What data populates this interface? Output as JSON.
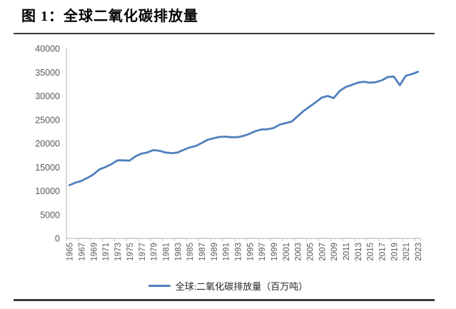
{
  "title": "图 1：全球二氧化碳排放量",
  "colors": {
    "line": "#4f81bd",
    "axis": "#bfbfbf",
    "tick_label": "#595959",
    "rule": "#3b3b3b",
    "legend_text": "#262626"
  },
  "chart_data": {
    "type": "line",
    "title": "图 1：全球二氧化碳排放量",
    "xlabel": "",
    "ylabel": "",
    "ylim": [
      0,
      40000
    ],
    "ytick_step": 5000,
    "xtick_label_interval": 2,
    "grid": false,
    "legend_position": "bottom",
    "x": [
      1965,
      1966,
      1967,
      1968,
      1969,
      1970,
      1971,
      1972,
      1973,
      1974,
      1975,
      1976,
      1977,
      1978,
      1979,
      1980,
      1981,
      1982,
      1983,
      1984,
      1985,
      1986,
      1987,
      1988,
      1989,
      1990,
      1991,
      1992,
      1993,
      1994,
      1995,
      1996,
      1997,
      1998,
      1999,
      2000,
      2001,
      2002,
      2003,
      2004,
      2005,
      2006,
      2007,
      2008,
      2009,
      2010,
      2011,
      2012,
      2013,
      2014,
      2015,
      2016,
      2017,
      2018,
      2019,
      2020,
      2021,
      2022,
      2023
    ],
    "series": [
      {
        "name": "全球:二氧化碳排放量（百万吨）",
        "values": [
          11200,
          11720,
          12110,
          12730,
          13480,
          14530,
          15030,
          15640,
          16430,
          16440,
          16370,
          17280,
          17870,
          18100,
          18610,
          18430,
          18090,
          17950,
          18070,
          18650,
          19140,
          19440,
          20070,
          20760,
          21090,
          21370,
          21430,
          21310,
          21320,
          21600,
          22040,
          22610,
          22960,
          23000,
          23260,
          23960,
          24290,
          24600,
          25750,
          26870,
          27770,
          28660,
          29670,
          30000,
          29560,
          31090,
          31900,
          32310,
          32800,
          32990,
          32800,
          32900,
          33300,
          34000,
          34090,
          32280,
          34260,
          34600,
          35100
        ]
      }
    ]
  }
}
